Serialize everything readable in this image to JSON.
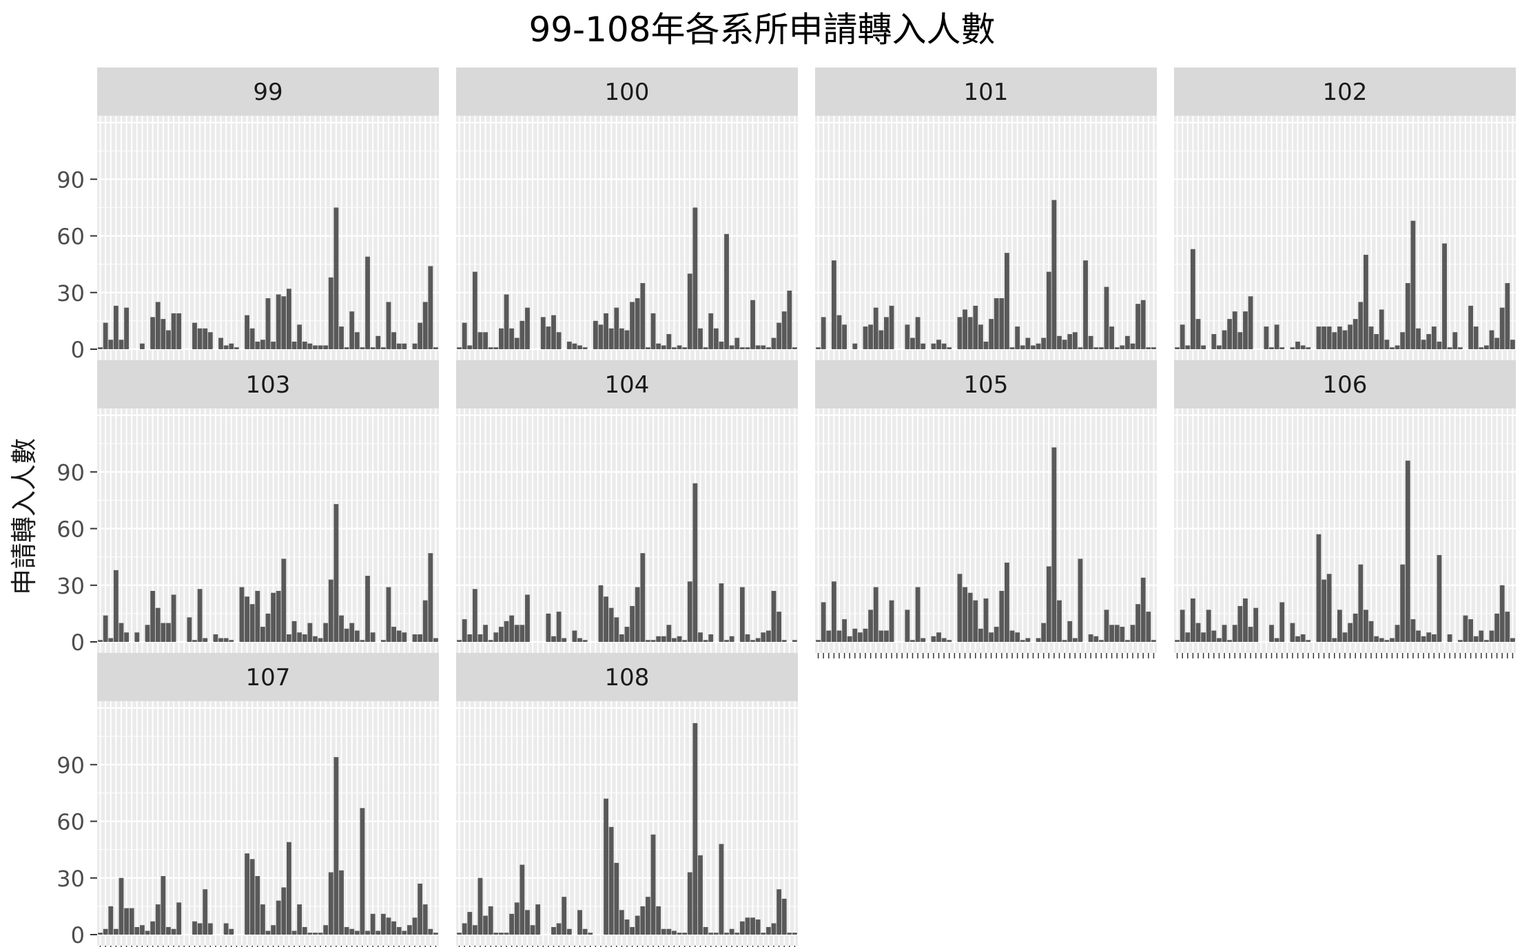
{
  "chart_data": {
    "type": "bar",
    "title": "99-108年各系所申請轉入人數",
    "xlabel": "",
    "ylabel": "申請轉入人數",
    "ylim": [
      0,
      120
    ],
    "y_ticks": [
      0,
      30,
      60,
      90
    ],
    "grid": true,
    "panels": [
      {
        "name": "99",
        "values": [
          1,
          14,
          5,
          23,
          5,
          22,
          0,
          0,
          3,
          0,
          17,
          25,
          16,
          10,
          19,
          19,
          0,
          0,
          14,
          11,
          11,
          9,
          0,
          6,
          2,
          3,
          1,
          0,
          18,
          11,
          4,
          5,
          27,
          4,
          29,
          28,
          32,
          4,
          13,
          4,
          3,
          2,
          2,
          2,
          38,
          75,
          12,
          1,
          20,
          9,
          1,
          49,
          1,
          7,
          1,
          25,
          9,
          3,
          3,
          0,
          3,
          14,
          25,
          44,
          1
        ]
      },
      {
        "name": "100",
        "values": [
          1,
          14,
          2,
          41,
          9,
          9,
          1,
          1,
          11,
          29,
          11,
          6,
          15,
          22,
          0,
          0,
          17,
          12,
          18,
          9,
          0,
          4,
          3,
          2,
          1,
          0,
          15,
          13,
          19,
          11,
          22,
          11,
          10,
          25,
          27,
          35,
          1,
          19,
          3,
          2,
          8,
          1,
          2,
          1,
          40,
          75,
          11,
          1,
          19,
          11,
          4,
          61,
          2,
          6,
          1,
          1,
          26,
          2,
          2,
          1,
          6,
          14,
          20,
          31,
          1
        ]
      },
      {
        "name": "101",
        "values": [
          1,
          17,
          0,
          47,
          18,
          13,
          0,
          3,
          0,
          12,
          13,
          22,
          10,
          17,
          23,
          0,
          0,
          13,
          6,
          17,
          3,
          0,
          3,
          5,
          3,
          1,
          0,
          17,
          21,
          17,
          23,
          13,
          4,
          16,
          27,
          27,
          51,
          1,
          12,
          2,
          6,
          2,
          3,
          6,
          41,
          79,
          7,
          5,
          8,
          9,
          1,
          47,
          7,
          1,
          1,
          33,
          12,
          1,
          2,
          7,
          3,
          24,
          26,
          1,
          1
        ]
      },
      {
        "name": "102",
        "values": [
          1,
          13,
          2,
          53,
          16,
          2,
          0,
          8,
          2,
          10,
          16,
          20,
          9,
          20,
          28,
          0,
          0,
          12,
          1,
          13,
          1,
          0,
          1,
          4,
          2,
          1,
          0,
          12,
          12,
          12,
          9,
          12,
          10,
          13,
          16,
          25,
          50,
          12,
          8,
          21,
          5,
          1,
          2,
          9,
          35,
          68,
          11,
          5,
          8,
          12,
          4,
          56,
          1,
          9,
          1,
          0,
          23,
          12,
          1,
          2,
          10,
          6,
          22,
          35,
          5
        ]
      },
      {
        "name": "103",
        "values": [
          1,
          14,
          2,
          38,
          10,
          5,
          0,
          5,
          0,
          9,
          27,
          18,
          10,
          10,
          25,
          0,
          0,
          13,
          1,
          28,
          2,
          0,
          4,
          2,
          2,
          1,
          0,
          29,
          24,
          20,
          27,
          8,
          15,
          26,
          27,
          44,
          4,
          11,
          5,
          4,
          10,
          3,
          2,
          10,
          33,
          73,
          14,
          7,
          10,
          6,
          1,
          35,
          5,
          0,
          1,
          29,
          8,
          6,
          5,
          0,
          4,
          4,
          22,
          47,
          2
        ]
      },
      {
        "name": "104",
        "values": [
          1,
          12,
          4,
          28,
          4,
          9,
          1,
          5,
          8,
          11,
          14,
          9,
          9,
          25,
          0,
          0,
          0,
          15,
          3,
          16,
          2,
          0,
          6,
          2,
          1,
          0,
          0,
          30,
          24,
          18,
          13,
          4,
          8,
          19,
          29,
          47,
          1,
          1,
          3,
          3,
          9,
          2,
          3,
          1,
          32,
          84,
          5,
          1,
          4,
          0,
          31,
          1,
          3,
          0,
          29,
          4,
          1,
          2,
          5,
          6,
          27,
          16,
          1,
          0,
          1
        ]
      },
      {
        "name": "105",
        "values": [
          1,
          21,
          6,
          32,
          6,
          12,
          3,
          7,
          5,
          7,
          17,
          29,
          6,
          6,
          22,
          0,
          0,
          17,
          1,
          29,
          2,
          0,
          3,
          5,
          2,
          1,
          0,
          36,
          29,
          26,
          22,
          7,
          23,
          5,
          8,
          27,
          42,
          6,
          5,
          1,
          2,
          0,
          2,
          10,
          40,
          103,
          22,
          1,
          11,
          2,
          44,
          0,
          4,
          3,
          1,
          17,
          9,
          9,
          8,
          1,
          9,
          20,
          34,
          16,
          1
        ]
      },
      {
        "name": "106",
        "values": [
          1,
          17,
          5,
          23,
          10,
          5,
          17,
          6,
          2,
          9,
          1,
          9,
          19,
          23,
          8,
          18,
          0,
          0,
          9,
          2,
          21,
          0,
          10,
          3,
          4,
          1,
          0,
          57,
          33,
          36,
          2,
          17,
          5,
          10,
          15,
          41,
          17,
          11,
          3,
          2,
          1,
          2,
          9,
          41,
          96,
          12,
          6,
          3,
          5,
          4,
          46,
          0,
          4,
          0,
          1,
          14,
          12,
          3,
          6,
          1,
          6,
          15,
          30,
          16,
          2
        ]
      },
      {
        "name": "107",
        "values": [
          1,
          3,
          15,
          3,
          30,
          14,
          14,
          4,
          5,
          2,
          7,
          16,
          31,
          4,
          3,
          17,
          0,
          0,
          7,
          6,
          24,
          6,
          0,
          0,
          6,
          3,
          0,
          0,
          43,
          40,
          31,
          16,
          2,
          5,
          18,
          25,
          49,
          2,
          16,
          4,
          1,
          1,
          1,
          5,
          33,
          94,
          34,
          4,
          3,
          2,
          67,
          2,
          11,
          2,
          11,
          9,
          7,
          4,
          2,
          5,
          9,
          27,
          16,
          3,
          1
        ]
      },
      {
        "name": "108",
        "values": [
          1,
          6,
          12,
          5,
          30,
          10,
          15,
          1,
          1,
          1,
          11,
          17,
          37,
          13,
          5,
          16,
          0,
          0,
          4,
          6,
          20,
          3,
          0,
          13,
          3,
          1,
          0,
          0,
          72,
          57,
          38,
          13,
          8,
          4,
          10,
          15,
          20,
          53,
          15,
          3,
          3,
          2,
          1,
          1,
          33,
          112,
          42,
          4,
          1,
          1,
          48,
          1,
          3,
          1,
          7,
          9,
          9,
          8,
          1,
          4,
          6,
          24,
          19,
          1,
          1
        ]
      }
    ]
  }
}
